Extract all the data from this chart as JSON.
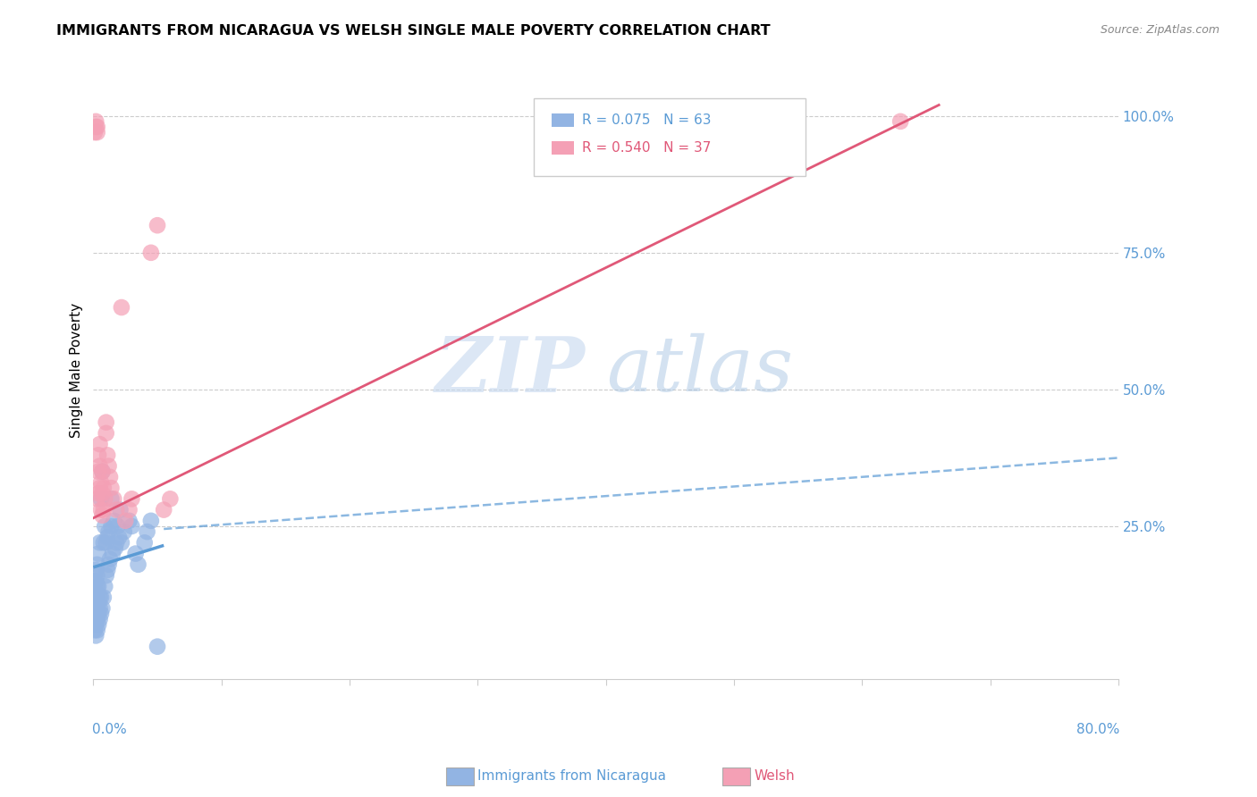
{
  "title": "IMMIGRANTS FROM NICARAGUA VS WELSH SINGLE MALE POVERTY CORRELATION CHART",
  "source": "Source: ZipAtlas.com",
  "ylabel": "Single Male Poverty",
  "yticks": [
    0.0,
    0.25,
    0.5,
    0.75,
    1.0
  ],
  "ytick_labels": [
    "",
    "25.0%",
    "50.0%",
    "75.0%",
    "100.0%"
  ],
  "xlim": [
    0.0,
    0.8
  ],
  "ylim": [
    -0.03,
    1.1
  ],
  "legend_label1": "Immigrants from Nicaragua",
  "legend_label2": "Welsh",
  "blue_color": "#92b4e3",
  "pink_color": "#f4a0b5",
  "blue_line_color": "#5b9bd5",
  "pink_line_color": "#e05878",
  "blue_scatter_x": [
    0.001,
    0.001,
    0.001,
    0.001,
    0.001,
    0.002,
    0.002,
    0.002,
    0.002,
    0.002,
    0.002,
    0.002,
    0.003,
    0.003,
    0.003,
    0.003,
    0.003,
    0.003,
    0.003,
    0.004,
    0.004,
    0.004,
    0.004,
    0.004,
    0.005,
    0.005,
    0.005,
    0.005,
    0.006,
    0.006,
    0.006,
    0.007,
    0.007,
    0.008,
    0.008,
    0.009,
    0.009,
    0.01,
    0.01,
    0.011,
    0.011,
    0.012,
    0.012,
    0.013,
    0.014,
    0.014,
    0.015,
    0.016,
    0.017,
    0.018,
    0.019,
    0.02,
    0.021,
    0.022,
    0.024,
    0.028,
    0.03,
    0.033,
    0.035,
    0.04,
    0.042,
    0.045,
    0.05
  ],
  "blue_scatter_y": [
    0.06,
    0.08,
    0.1,
    0.12,
    0.15,
    0.05,
    0.07,
    0.09,
    0.11,
    0.13,
    0.15,
    0.17,
    0.06,
    0.08,
    0.1,
    0.12,
    0.14,
    0.16,
    0.18,
    0.07,
    0.09,
    0.11,
    0.14,
    0.2,
    0.08,
    0.1,
    0.12,
    0.22,
    0.09,
    0.12,
    0.3,
    0.1,
    0.35,
    0.12,
    0.22,
    0.14,
    0.25,
    0.16,
    0.22,
    0.17,
    0.23,
    0.18,
    0.24,
    0.19,
    0.25,
    0.3,
    0.2,
    0.26,
    0.21,
    0.22,
    0.25,
    0.23,
    0.28,
    0.22,
    0.24,
    0.26,
    0.25,
    0.2,
    0.18,
    0.22,
    0.24,
    0.26,
    0.03
  ],
  "pink_scatter_x": [
    0.001,
    0.002,
    0.002,
    0.003,
    0.003,
    0.003,
    0.004,
    0.004,
    0.004,
    0.005,
    0.005,
    0.005,
    0.006,
    0.006,
    0.007,
    0.007,
    0.007,
    0.008,
    0.008,
    0.009,
    0.01,
    0.01,
    0.011,
    0.012,
    0.013,
    0.014,
    0.016,
    0.018,
    0.022,
    0.025,
    0.028,
    0.03,
    0.045,
    0.05,
    0.055,
    0.06,
    0.63
  ],
  "pink_scatter_y": [
    0.97,
    0.98,
    0.99,
    0.98,
    0.97,
    0.3,
    0.31,
    0.35,
    0.38,
    0.32,
    0.36,
    0.4,
    0.28,
    0.33,
    0.27,
    0.31,
    0.35,
    0.28,
    0.32,
    0.3,
    0.42,
    0.44,
    0.38,
    0.36,
    0.34,
    0.32,
    0.3,
    0.28,
    0.65,
    0.26,
    0.28,
    0.3,
    0.75,
    0.8,
    0.28,
    0.3,
    0.99
  ],
  "blue_trend_x0": 0.0,
  "blue_trend_x1": 0.055,
  "blue_trend_y0": 0.175,
  "blue_trend_y1": 0.215,
  "dash_trend_x0": 0.055,
  "dash_trend_x1": 0.8,
  "dash_trend_y0": 0.245,
  "dash_trend_y1": 0.375,
  "pink_trend_x0": 0.0,
  "pink_trend_x1": 0.66,
  "pink_trend_y0": 0.265,
  "pink_trend_y1": 1.02
}
